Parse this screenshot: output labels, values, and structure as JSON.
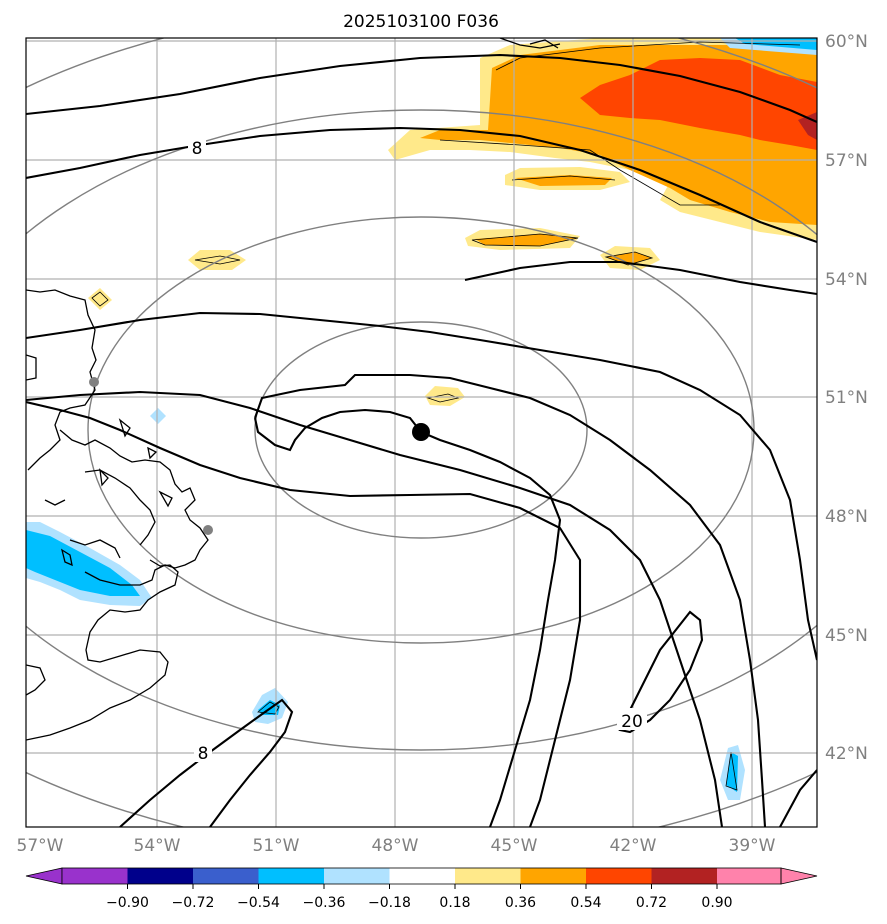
{
  "title": "2025103100 F036",
  "lat_labels": [
    "60°N",
    "57°N",
    "54°N",
    "51°N",
    "48°N",
    "45°N",
    "42°N"
  ],
  "lon_labels": [
    "57°W",
    "54°W",
    "51°W",
    "48°W",
    "45°W",
    "42°W",
    "39°W"
  ],
  "contour_labels": [
    "8",
    "8",
    "20"
  ],
  "colorbar": {
    "tick_labels": [
      "−0.90",
      "−0.72",
      "−0.54",
      "−0.36",
      "−0.18",
      "0.18",
      "0.36",
      "0.54",
      "0.72",
      "0.90"
    ],
    "colors": [
      "#9932cc",
      "#00008b",
      "#3a5fcd",
      "#00bfff",
      "#b0e2ff",
      "#ffffff",
      "#ffe98a",
      "#ffa500",
      "#ff4500",
      "#b22222",
      "#ff82ab"
    ]
  },
  "colors": {
    "cyan": "#00bfff",
    "light_blue": "#b0e2ff",
    "light_yellow": "#ffe98a",
    "orange": "#ffa500",
    "red_orange": "#ff4500",
    "dark_red": "#b22222"
  }
}
